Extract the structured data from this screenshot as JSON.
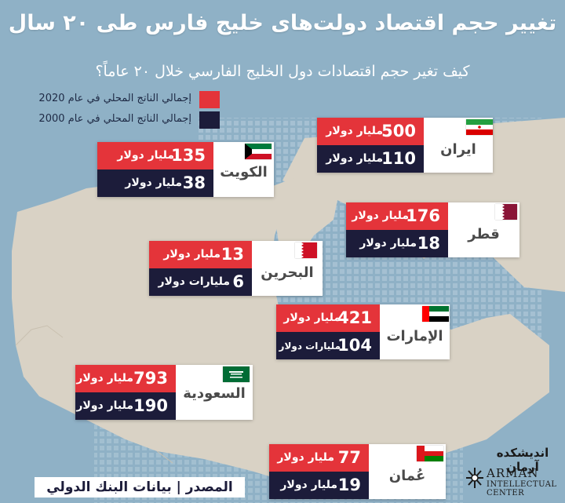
{
  "title": "تغییر حجم اقتصاد دولت‌های خلیج فارس طی ۲۰ سال",
  "subtitle": "كيف تغير حجم اقتصادات دول الخليج الفارسي خلال ۲۰ عاماً؟",
  "colors": {
    "red": "#e4343a",
    "dark": "#1c1c3a"
  },
  "legend": {
    "gdp_2020": "إجمالي الناتج المحلي في عام 2020",
    "gdp_2000": "إجمالي الناتج المحلي في عام 2000"
  },
  "source_label": "المصدر | بيانات البنك الدولي",
  "logo": {
    "fa": "اندیشکده آرمان",
    "en1": "ARMAN",
    "en2": "INTELLECTUAL CENTER"
  },
  "chart_data": {
    "type": "table",
    "series_names": [
      "إجمالي الناتج المحلي في عام 2020",
      "إجمالي الناتج المحلي في عام 2000"
    ],
    "countries": [
      {
        "key": "iran",
        "name": "ایران",
        "flag": "iran-flag",
        "gdp_2020": 500,
        "gdp_2000": 110,
        "unit_2020": "مليار دولار",
        "unit_2000": "مليار دولار"
      },
      {
        "key": "kuwait",
        "name": "الكويت",
        "flag": "kuwait-flag",
        "gdp_2020": 135,
        "gdp_2000": 38,
        "unit_2020": "مليار دولار",
        "unit_2000": "مليار دولار"
      },
      {
        "key": "qatar",
        "name": "قطر",
        "flag": "qatar-flag",
        "gdp_2020": 176,
        "gdp_2000": 18,
        "unit_2020": "مليار دولار",
        "unit_2000": "مليار دولار"
      },
      {
        "key": "bahrain",
        "name": "البحرين",
        "flag": "bahrain-flag",
        "gdp_2020": 13,
        "gdp_2000": 6,
        "unit_2020": "مليار دولار",
        "unit_2000": "مليارات دولار"
      },
      {
        "key": "uae",
        "name": "الإمارات",
        "flag": "uae-flag",
        "gdp_2020": 421,
        "gdp_2000": 104,
        "unit_2020": "مليار دولار",
        "unit_2000": "مليارات دولار"
      },
      {
        "key": "saudi",
        "name": "السعودية",
        "flag": "saudi-flag",
        "gdp_2020": 793,
        "gdp_2000": 190,
        "unit_2020": "مليار دولار",
        "unit_2000": "مليار دولار"
      },
      {
        "key": "oman",
        "name": "عُمان",
        "flag": "oman-flag",
        "gdp_2020": 77,
        "gdp_2000": 19,
        "unit_2020": "مليار دولار",
        "unit_2000": "مليار دولار"
      }
    ]
  }
}
